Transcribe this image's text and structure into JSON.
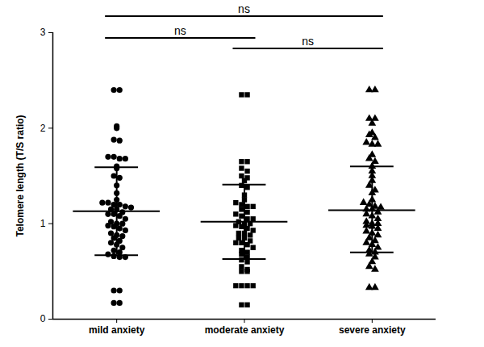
{
  "chart_data": {
    "type": "scatter",
    "ylabel": "Telomere length (T/S ratio)",
    "ylim": [
      0,
      3
    ],
    "yticks": [
      0,
      1,
      2,
      3
    ],
    "series": [
      {
        "name": "mild anxiety",
        "marker": "circle",
        "color": "#000000",
        "values": [
          2.4,
          2.4,
          2.02,
          2.0,
          1.88,
          1.87,
          1.7,
          1.7,
          1.68,
          1.68,
          1.6,
          1.58,
          1.5,
          1.48,
          1.4,
          1.32,
          1.25,
          1.22,
          1.22,
          1.2,
          1.2,
          1.18,
          1.17,
          1.15,
          1.15,
          1.12,
          1.1,
          1.1,
          1.08,
          1.05,
          1.02,
          1.0,
          1.0,
          0.98,
          0.97,
          0.95,
          0.93,
          0.9,
          0.88,
          0.87,
          0.85,
          0.82,
          0.8,
          0.78,
          0.75,
          0.72,
          0.7,
          0.68,
          0.66,
          0.65,
          0.65,
          0.3,
          0.3,
          0.17,
          0.17
        ],
        "error_bar": {
          "center": 1.13,
          "low": 0.67,
          "high": 1.59
        }
      },
      {
        "name": "moderate anxiety",
        "marker": "square",
        "color": "#000000",
        "values": [
          2.35,
          2.35,
          1.65,
          1.65,
          1.58,
          1.55,
          1.5,
          1.48,
          1.45,
          1.4,
          1.38,
          1.3,
          1.25,
          1.22,
          1.2,
          1.18,
          1.18,
          1.15,
          1.12,
          1.1,
          1.08,
          1.05,
          1.05,
          1.02,
          1.0,
          1.0,
          0.98,
          0.97,
          0.95,
          0.93,
          0.9,
          0.9,
          0.88,
          0.85,
          0.85,
          0.82,
          0.8,
          0.8,
          0.78,
          0.75,
          0.72,
          0.7,
          0.68,
          0.65,
          0.62,
          0.6,
          0.55,
          0.52,
          0.5,
          0.5,
          0.35,
          0.35,
          0.35,
          0.35,
          0.15,
          0.15
        ],
        "error_bar": {
          "center": 1.02,
          "low": 0.63,
          "high": 1.41
        }
      },
      {
        "name": "severe anxiety",
        "marker": "triangle",
        "color": "#000000",
        "values": [
          2.4,
          2.4,
          2.1,
          2.1,
          2.05,
          1.95,
          1.93,
          1.9,
          1.85,
          1.83,
          1.83,
          1.72,
          1.68,
          1.65,
          1.6,
          1.55,
          1.5,
          1.45,
          1.4,
          1.35,
          1.32,
          1.25,
          1.22,
          1.2,
          1.18,
          1.17,
          1.15,
          1.15,
          1.12,
          1.1,
          1.08,
          1.05,
          1.02,
          1.0,
          1.0,
          0.98,
          0.97,
          0.95,
          0.92,
          0.9,
          0.88,
          0.85,
          0.82,
          0.8,
          0.78,
          0.75,
          0.72,
          0.7,
          0.68,
          0.65,
          0.6,
          0.55,
          0.52,
          0.33,
          0.33
        ],
        "error_bar": {
          "center": 1.14,
          "low": 0.7,
          "high": 1.6
        }
      }
    ],
    "annotations": [
      {
        "from": "mild anxiety",
        "to": "severe anxiety",
        "label": "ns"
      },
      {
        "from": "mild anxiety",
        "to": "moderate anxiety",
        "label": "ns"
      },
      {
        "from": "moderate anxiety",
        "to": "severe anxiety",
        "label": "ns"
      }
    ]
  }
}
